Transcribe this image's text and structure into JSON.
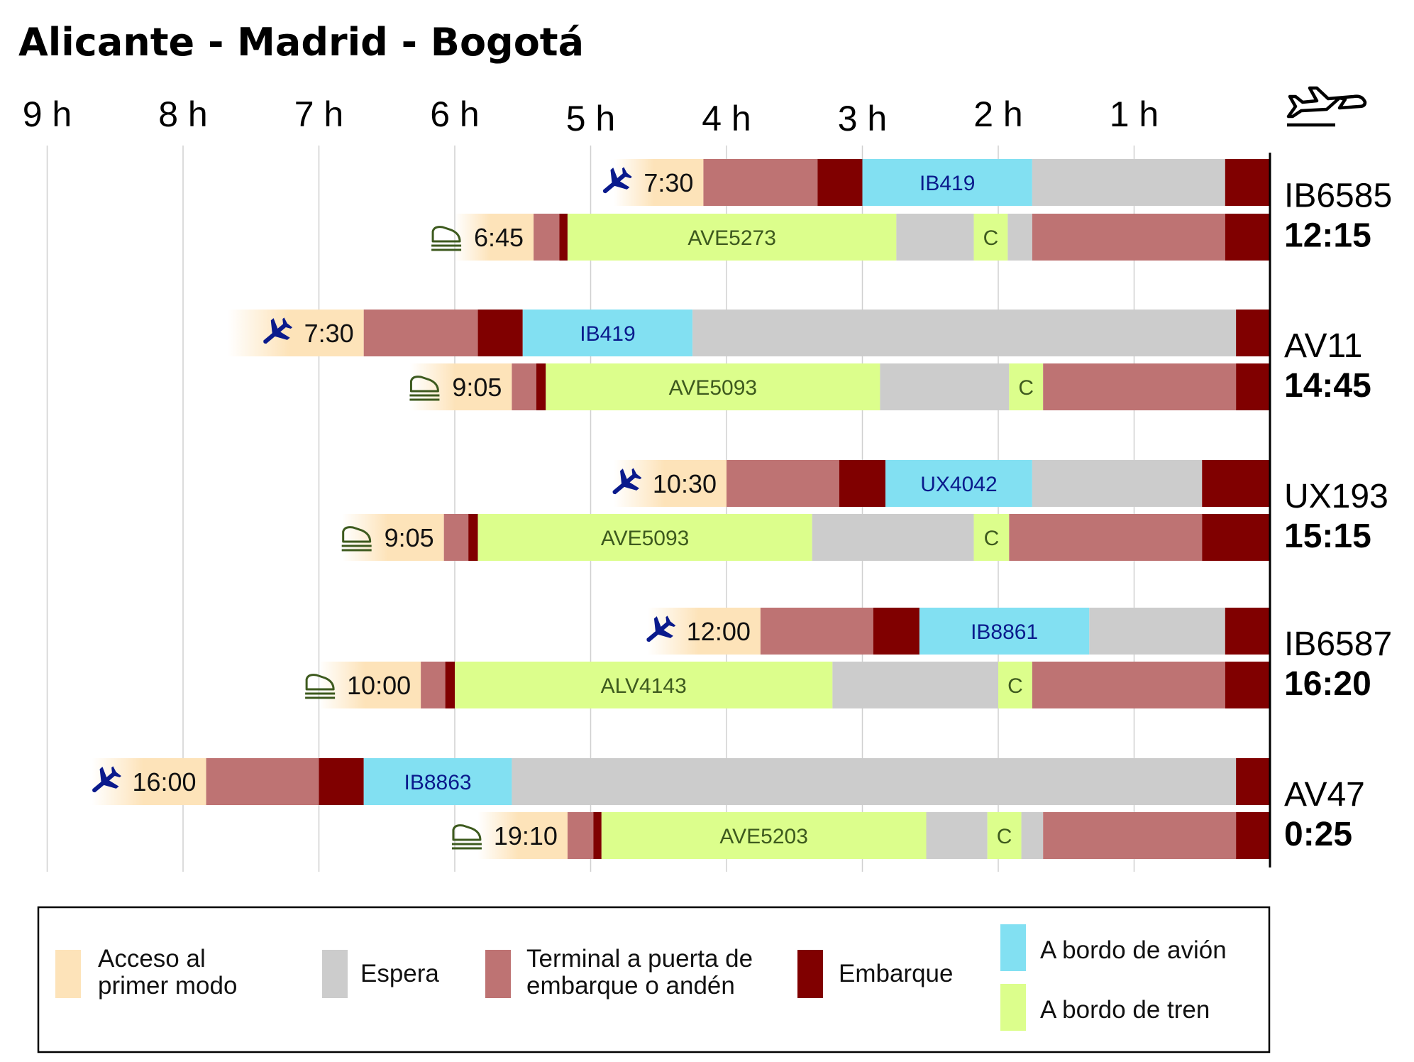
{
  "chart_data": {
    "type": "gantt-stacked-bar",
    "title": "Alicante - Madrid - Bogotá",
    "x_axis": {
      "unit": "hours before departure of long-haul flight",
      "min": 0,
      "max": 9.0,
      "reversed": true,
      "ticks": [
        {
          "value": 9,
          "label": "9 h"
        },
        {
          "value": 8,
          "label": "8 h"
        },
        {
          "value": 7,
          "label": "7 h"
        },
        {
          "value": 6,
          "label": "6 h"
        },
        {
          "value": 5,
          "label": "5 h"
        },
        {
          "value": 4,
          "label": "4 h"
        },
        {
          "value": 3,
          "label": "3 h"
        },
        {
          "value": 2,
          "label": "2 h"
        },
        {
          "value": 1,
          "label": "1 h"
        }
      ]
    },
    "categories": {
      "access": {
        "color": "#FDE3B9",
        "legend": "Acceso al primer modo"
      },
      "wait": {
        "color": "#CCCCCC",
        "legend": "Espera"
      },
      "terminal": {
        "color": "#BE7373",
        "legend": "Terminal a puerta de embarque o andén"
      },
      "boarding": {
        "color": "#800000",
        "legend": "Embarque"
      },
      "plane": {
        "color": "#82E0F2",
        "legend": "A bordo de avión"
      },
      "train": {
        "color": "#DCFE8C",
        "legend": "A bordo de tren"
      },
      "connection": {
        "color": "#DCFE8C",
        "legend": ""
      }
    },
    "groups": [
      {
        "flight": "IB6585",
        "arrival": "12:15",
        "rows": [
          {
            "mode": "plane",
            "time": "7:30",
            "segments": [
              {
                "cat": "access",
                "start": 4.83,
                "end": 4.17
              },
              {
                "cat": "terminal",
                "start": 4.17,
                "end": 3.33
              },
              {
                "cat": "boarding",
                "start": 3.33,
                "end": 3.0
              },
              {
                "cat": "plane",
                "start": 3.0,
                "end": 1.75,
                "label": "IB419"
              },
              {
                "cat": "wait",
                "start": 1.75,
                "end": 0.33
              },
              {
                "cat": "boarding",
                "start": 0.33,
                "end": 0.0
              }
            ]
          },
          {
            "mode": "train",
            "time": "6:45",
            "segments": [
              {
                "cat": "access",
                "start": 6.0,
                "end": 5.42
              },
              {
                "cat": "terminal",
                "start": 5.42,
                "end": 5.23
              },
              {
                "cat": "boarding",
                "start": 5.23,
                "end": 5.17
              },
              {
                "cat": "train",
                "start": 5.17,
                "end": 2.75,
                "label": "AVE5273"
              },
              {
                "cat": "wait",
                "start": 2.75,
                "end": 2.18
              },
              {
                "cat": "connection",
                "start": 2.18,
                "end": 1.93,
                "label": "C"
              },
              {
                "cat": "wait",
                "start": 1.93,
                "end": 1.75
              },
              {
                "cat": "terminal",
                "start": 1.75,
                "end": 0.33
              },
              {
                "cat": "boarding",
                "start": 0.33,
                "end": 0.0
              }
            ]
          }
        ]
      },
      {
        "flight": "AV11",
        "arrival": "14:45",
        "rows": [
          {
            "mode": "plane",
            "time": "7:30",
            "segments": [
              {
                "cat": "access",
                "start": 7.67,
                "end": 6.67
              },
              {
                "cat": "terminal",
                "start": 6.67,
                "end": 5.83
              },
              {
                "cat": "boarding",
                "start": 5.83,
                "end": 5.5
              },
              {
                "cat": "plane",
                "start": 5.5,
                "end": 4.25,
                "label": "IB419"
              },
              {
                "cat": "wait",
                "start": 4.25,
                "end": 0.25
              },
              {
                "cat": "boarding",
                "start": 0.25,
                "end": 0.0
              }
            ]
          },
          {
            "mode": "train",
            "time": "9:05",
            "segments": [
              {
                "cat": "access",
                "start": 6.33,
                "end": 5.58
              },
              {
                "cat": "terminal",
                "start": 5.58,
                "end": 5.4
              },
              {
                "cat": "boarding",
                "start": 5.4,
                "end": 5.33
              },
              {
                "cat": "train",
                "start": 5.33,
                "end": 2.87,
                "label": "AVE5093"
              },
              {
                "cat": "wait",
                "start": 2.87,
                "end": 1.92
              },
              {
                "cat": "connection",
                "start": 1.92,
                "end": 1.67,
                "label": "C"
              },
              {
                "cat": "terminal",
                "start": 1.67,
                "end": 0.25
              },
              {
                "cat": "boarding",
                "start": 0.25,
                "end": 0.0
              }
            ]
          }
        ]
      },
      {
        "flight": "UX193",
        "arrival": "15:15",
        "rows": [
          {
            "mode": "plane",
            "time": "10:30",
            "segments": [
              {
                "cat": "access",
                "start": 4.83,
                "end": 4.0
              },
              {
                "cat": "terminal",
                "start": 4.0,
                "end": 3.17
              },
              {
                "cat": "boarding",
                "start": 3.17,
                "end": 2.83
              },
              {
                "cat": "plane",
                "start": 2.83,
                "end": 1.75,
                "label": "UX4042"
              },
              {
                "cat": "wait",
                "start": 1.75,
                "end": 0.5
              },
              {
                "cat": "boarding",
                "start": 0.5,
                "end": 0.0
              }
            ]
          },
          {
            "mode": "train",
            "time": "9:05",
            "segments": [
              {
                "cat": "access",
                "start": 6.83,
                "end": 6.08
              },
              {
                "cat": "terminal",
                "start": 6.08,
                "end": 5.9
              },
              {
                "cat": "boarding",
                "start": 5.9,
                "end": 5.83
              },
              {
                "cat": "train",
                "start": 5.83,
                "end": 3.37,
                "label": "AVE5093"
              },
              {
                "cat": "wait",
                "start": 3.37,
                "end": 2.18
              },
              {
                "cat": "connection",
                "start": 2.18,
                "end": 1.92,
                "label": "C"
              },
              {
                "cat": "terminal",
                "start": 1.92,
                "end": 0.5
              },
              {
                "cat": "boarding",
                "start": 0.5,
                "end": 0.0
              }
            ]
          }
        ]
      },
      {
        "flight": "IB6587",
        "arrival": "16:20",
        "rows": [
          {
            "mode": "plane",
            "time": "12:00",
            "segments": [
              {
                "cat": "access",
                "start": 4.58,
                "end": 3.75
              },
              {
                "cat": "terminal",
                "start": 3.75,
                "end": 2.92
              },
              {
                "cat": "boarding",
                "start": 2.92,
                "end": 2.58
              },
              {
                "cat": "plane",
                "start": 2.58,
                "end": 1.33,
                "label": "IB8861"
              },
              {
                "cat": "wait",
                "start": 1.33,
                "end": 0.33
              },
              {
                "cat": "boarding",
                "start": 0.33,
                "end": 0.0
              }
            ]
          },
          {
            "mode": "train",
            "time": "10:00",
            "segments": [
              {
                "cat": "access",
                "start": 7.0,
                "end": 6.25
              },
              {
                "cat": "terminal",
                "start": 6.25,
                "end": 6.07
              },
              {
                "cat": "boarding",
                "start": 6.07,
                "end": 6.0
              },
              {
                "cat": "train",
                "start": 6.0,
                "end": 3.22,
                "label": "ALV4143"
              },
              {
                "cat": "wait",
                "start": 3.22,
                "end": 2.0
              },
              {
                "cat": "connection",
                "start": 2.0,
                "end": 1.75,
                "label": "C"
              },
              {
                "cat": "terminal",
                "start": 1.75,
                "end": 0.33
              },
              {
                "cat": "boarding",
                "start": 0.33,
                "end": 0.0
              }
            ]
          }
        ]
      },
      {
        "flight": "AV47",
        "arrival": "0:25",
        "rows": [
          {
            "mode": "plane",
            "time": "16:00",
            "segments": [
              {
                "cat": "access",
                "start": 8.67,
                "end": 7.83
              },
              {
                "cat": "terminal",
                "start": 7.83,
                "end": 7.0
              },
              {
                "cat": "boarding",
                "start": 7.0,
                "end": 6.67
              },
              {
                "cat": "plane",
                "start": 6.67,
                "end": 5.58,
                "label": "IB8863"
              },
              {
                "cat": "wait",
                "start": 5.58,
                "end": 0.25
              },
              {
                "cat": "boarding",
                "start": 0.25,
                "end": 0.0
              }
            ]
          },
          {
            "mode": "train",
            "time": "19:10",
            "segments": [
              {
                "cat": "access",
                "start": 5.83,
                "end": 5.17
              },
              {
                "cat": "terminal",
                "start": 5.17,
                "end": 4.98
              },
              {
                "cat": "boarding",
                "start": 4.98,
                "end": 4.92
              },
              {
                "cat": "train",
                "start": 4.92,
                "end": 2.53,
                "label": "AVE5203"
              },
              {
                "cat": "wait",
                "start": 2.53,
                "end": 2.08
              },
              {
                "cat": "connection",
                "start": 2.08,
                "end": 1.83,
                "label": "C"
              },
              {
                "cat": "wait",
                "start": 1.83,
                "end": 1.67
              },
              {
                "cat": "terminal",
                "start": 1.67,
                "end": 0.25
              },
              {
                "cat": "boarding",
                "start": 0.25,
                "end": 0.0
              }
            ]
          }
        ]
      }
    ],
    "legend": {
      "placement": "bottom",
      "items": [
        {
          "cat": "access",
          "lines": [
            "Acceso al",
            "primer modo"
          ]
        },
        {
          "cat": "wait",
          "lines": [
            "Espera"
          ]
        },
        {
          "cat": "terminal",
          "lines": [
            "Terminal a puerta de",
            "embarque o andén"
          ]
        },
        {
          "cat": "boarding",
          "lines": [
            "Embarque"
          ]
        },
        {
          "cat": "plane",
          "lines": [
            "A bordo de avión"
          ]
        },
        {
          "cat": "train",
          "lines": [
            "A bordo de tren"
          ]
        }
      ]
    },
    "colors": {
      "plane_icon": "#0A1A8C",
      "train_icon": "#3D5A1E",
      "plane_label": "#0A1A8C",
      "train_label": "#3D5A1E"
    }
  }
}
